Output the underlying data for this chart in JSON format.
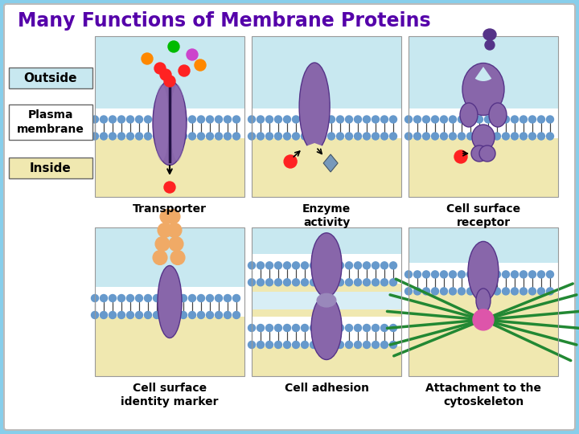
{
  "title": "Many Functions of Membrane Proteins",
  "title_color": "#5500aa",
  "title_fontsize": 17,
  "bg_outer": "#87CEEB",
  "panel_bg_top": "#c8e8f0",
  "panel_bg_bottom": "#f0e8b0",
  "membrane_blue": "#6699cc",
  "protein_color": "#8866aa",
  "labels": [
    "Transporter",
    "Enzyme\nactivity",
    "Cell surface\nreceptor",
    "Cell surface\nidentity marker",
    "Cell adhesion",
    "Attachment to the\ncytoskeleton"
  ],
  "outside_label": "Outside",
  "plasma_label": "Plasma\nmembrane",
  "inside_label": "Inside"
}
